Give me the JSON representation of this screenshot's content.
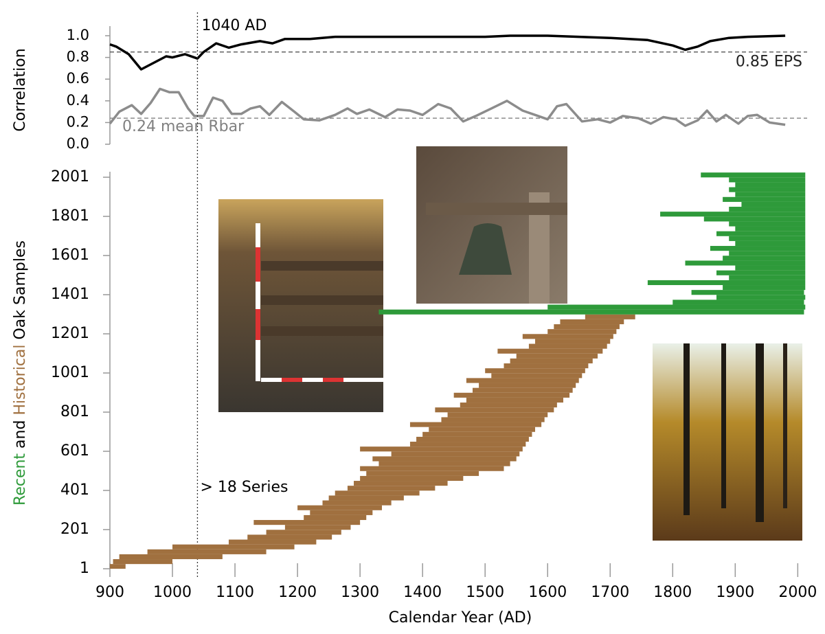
{
  "chart_data": [
    {
      "type": "line",
      "y_label": "Correlation",
      "xlim": [
        900,
        2015
      ],
      "ylim": [
        0,
        1
      ],
      "yticks": [
        {
          "value": 0,
          "label": "0.0"
        },
        0.2,
        0.4,
        0.6,
        0.8,
        {
          "value": 1,
          "label": "1.0"
        }
      ],
      "marker": {
        "value": 1040,
        "label": "1040 AD"
      },
      "reference_lines": [
        {
          "value": 0.85,
          "label": "0.85 EPS",
          "color": "#555555"
        },
        {
          "value": 0.24,
          "label": "0.24 mean Rbar",
          "color": "#808080"
        }
      ],
      "series": [
        {
          "color": "#000000",
          "x": [
            900,
            910,
            930,
            950,
            970,
            990,
            1000,
            1020,
            1040,
            1050,
            1070,
            1090,
            1110,
            1140,
            1160,
            1180,
            1220,
            1260,
            1300,
            1400,
            1500,
            1540,
            1600,
            1650,
            1700,
            1760,
            1800,
            1820,
            1840,
            1860,
            1890,
            1920,
            1980
          ],
          "values": [
            0.92,
            0.9,
            0.83,
            0.69,
            0.75,
            0.81,
            0.8,
            0.83,
            0.79,
            0.85,
            0.93,
            0.89,
            0.92,
            0.95,
            0.93,
            0.97,
            0.97,
            0.99,
            0.99,
            0.99,
            0.99,
            1.0,
            1.0,
            0.99,
            0.98,
            0.96,
            0.91,
            0.87,
            0.9,
            0.95,
            0.98,
            0.99,
            1.0
          ]
        },
        {
          "color": "#8c8c8c",
          "x": [
            900,
            915,
            935,
            950,
            965,
            980,
            995,
            1010,
            1025,
            1035,
            1050,
            1065,
            1080,
            1095,
            1110,
            1125,
            1140,
            1155,
            1175,
            1195,
            1210,
            1235,
            1260,
            1280,
            1295,
            1315,
            1340,
            1360,
            1380,
            1400,
            1425,
            1445,
            1465,
            1485,
            1510,
            1535,
            1560,
            1580,
            1600,
            1615,
            1630,
            1655,
            1680,
            1700,
            1720,
            1745,
            1765,
            1785,
            1805,
            1820,
            1840,
            1855,
            1870,
            1885,
            1905,
            1920,
            1935,
            1955,
            1980
          ],
          "values": [
            0.19,
            0.3,
            0.36,
            0.28,
            0.38,
            0.51,
            0.48,
            0.48,
            0.33,
            0.26,
            0.26,
            0.43,
            0.4,
            0.28,
            0.28,
            0.33,
            0.35,
            0.27,
            0.39,
            0.3,
            0.23,
            0.22,
            0.27,
            0.33,
            0.28,
            0.32,
            0.25,
            0.32,
            0.31,
            0.27,
            0.37,
            0.33,
            0.21,
            0.26,
            0.33,
            0.4,
            0.31,
            0.27,
            0.23,
            0.35,
            0.37,
            0.21,
            0.23,
            0.2,
            0.26,
            0.24,
            0.19,
            0.25,
            0.23,
            0.17,
            0.22,
            0.31,
            0.21,
            0.27,
            0.19,
            0.26,
            0.27,
            0.2,
            0.18
          ]
        }
      ]
    },
    {
      "type": "sample_span",
      "x_label": "Calendar Year (AD)",
      "y_label": [
        {
          "text": "Recent",
          "color": "#2e9a3a"
        },
        {
          "text": " and ",
          "color": "#000000"
        },
        {
          "text": "Historical",
          "color": "#a0703f"
        },
        {
          "text": " Oak Samples",
          "color": "#000000"
        }
      ],
      "annotation": "> 18 Series",
      "xlim": [
        900,
        2015
      ],
      "ylim": [
        1,
        2001
      ],
      "xticks": [
        900,
        1000,
        1100,
        1200,
        1300,
        1400,
        1500,
        1600,
        1700,
        1800,
        1900,
        2000
      ],
      "yticks": [
        1,
        201,
        401,
        601,
        801,
        1001,
        1201,
        1401,
        1601,
        1801,
        2001
      ],
      "series": [
        {
          "color": "#a0703f",
          "index": [
            1,
            25,
            50,
            75,
            100,
            125,
            150,
            175,
            200,
            225,
            250,
            275,
            300,
            325,
            350,
            375,
            400,
            425,
            450,
            475,
            500,
            525,
            550,
            575,
            600,
            625,
            650,
            675,
            700,
            725,
            750,
            775,
            800,
            825,
            850,
            875,
            900,
            925,
            950,
            975,
            1000,
            1025,
            1050,
            1075,
            1100,
            1125,
            1150,
            1175,
            1200,
            1225,
            1250,
            1275
          ],
          "start": [
            900,
            905,
            915,
            960,
            1000,
            1090,
            1120,
            1150,
            1180,
            1130,
            1210,
            1220,
            1200,
            1240,
            1250,
            1260,
            1280,
            1290,
            1300,
            1310,
            1300,
            1330,
            1320,
            1350,
            1300,
            1380,
            1390,
            1400,
            1410,
            1380,
            1430,
            1440,
            1420,
            1460,
            1470,
            1450,
            1480,
            1490,
            1470,
            1510,
            1500,
            1530,
            1540,
            1550,
            1520,
            1570,
            1580,
            1560,
            1600,
            1610,
            1620,
            1660
          ],
          "end": [
            925,
            1000,
            1080,
            1150,
            1195,
            1230,
            1255,
            1270,
            1285,
            1300,
            1310,
            1320,
            1335,
            1350,
            1370,
            1395,
            1420,
            1440,
            1465,
            1490,
            1530,
            1540,
            1550,
            1555,
            1560,
            1565,
            1570,
            1575,
            1580,
            1590,
            1595,
            1600,
            1610,
            1615,
            1625,
            1635,
            1640,
            1645,
            1650,
            1655,
            1660,
            1665,
            1672,
            1680,
            1688,
            1695,
            1700,
            1705,
            1710,
            1715,
            1722,
            1740
          ]
        },
        {
          "color": "#2e9a3a",
          "index": [
            1300,
            1325,
            1350,
            1375,
            1400,
            1425,
            1450,
            1475,
            1500,
            1525,
            1550,
            1575,
            1600,
            1625,
            1650,
            1675,
            1700,
            1725,
            1750,
            1775,
            1800,
            1825,
            1850,
            1875,
            1900,
            1925,
            1950,
            1975,
            2000
          ],
          "start": [
            1330,
            1600,
            1800,
            1870,
            1830,
            1880,
            1760,
            1890,
            1870,
            1900,
            1820,
            1880,
            1890,
            1860,
            1900,
            1890,
            1870,
            1900,
            1890,
            1850,
            1780,
            1890,
            1910,
            1880,
            1900,
            1890,
            1900,
            1890,
            1845
          ],
          "end": [
            2010,
            2012,
            2010,
            2012,
            2010,
            2012,
            2012,
            2012,
            2012,
            2012,
            2012,
            2012,
            2012,
            2012,
            2012,
            2012,
            2012,
            2012,
            2012,
            2012,
            2012,
            2012,
            2012,
            2012,
            2012,
            2012,
            2012,
            2012,
            2012
          ]
        }
      ]
    }
  ]
}
